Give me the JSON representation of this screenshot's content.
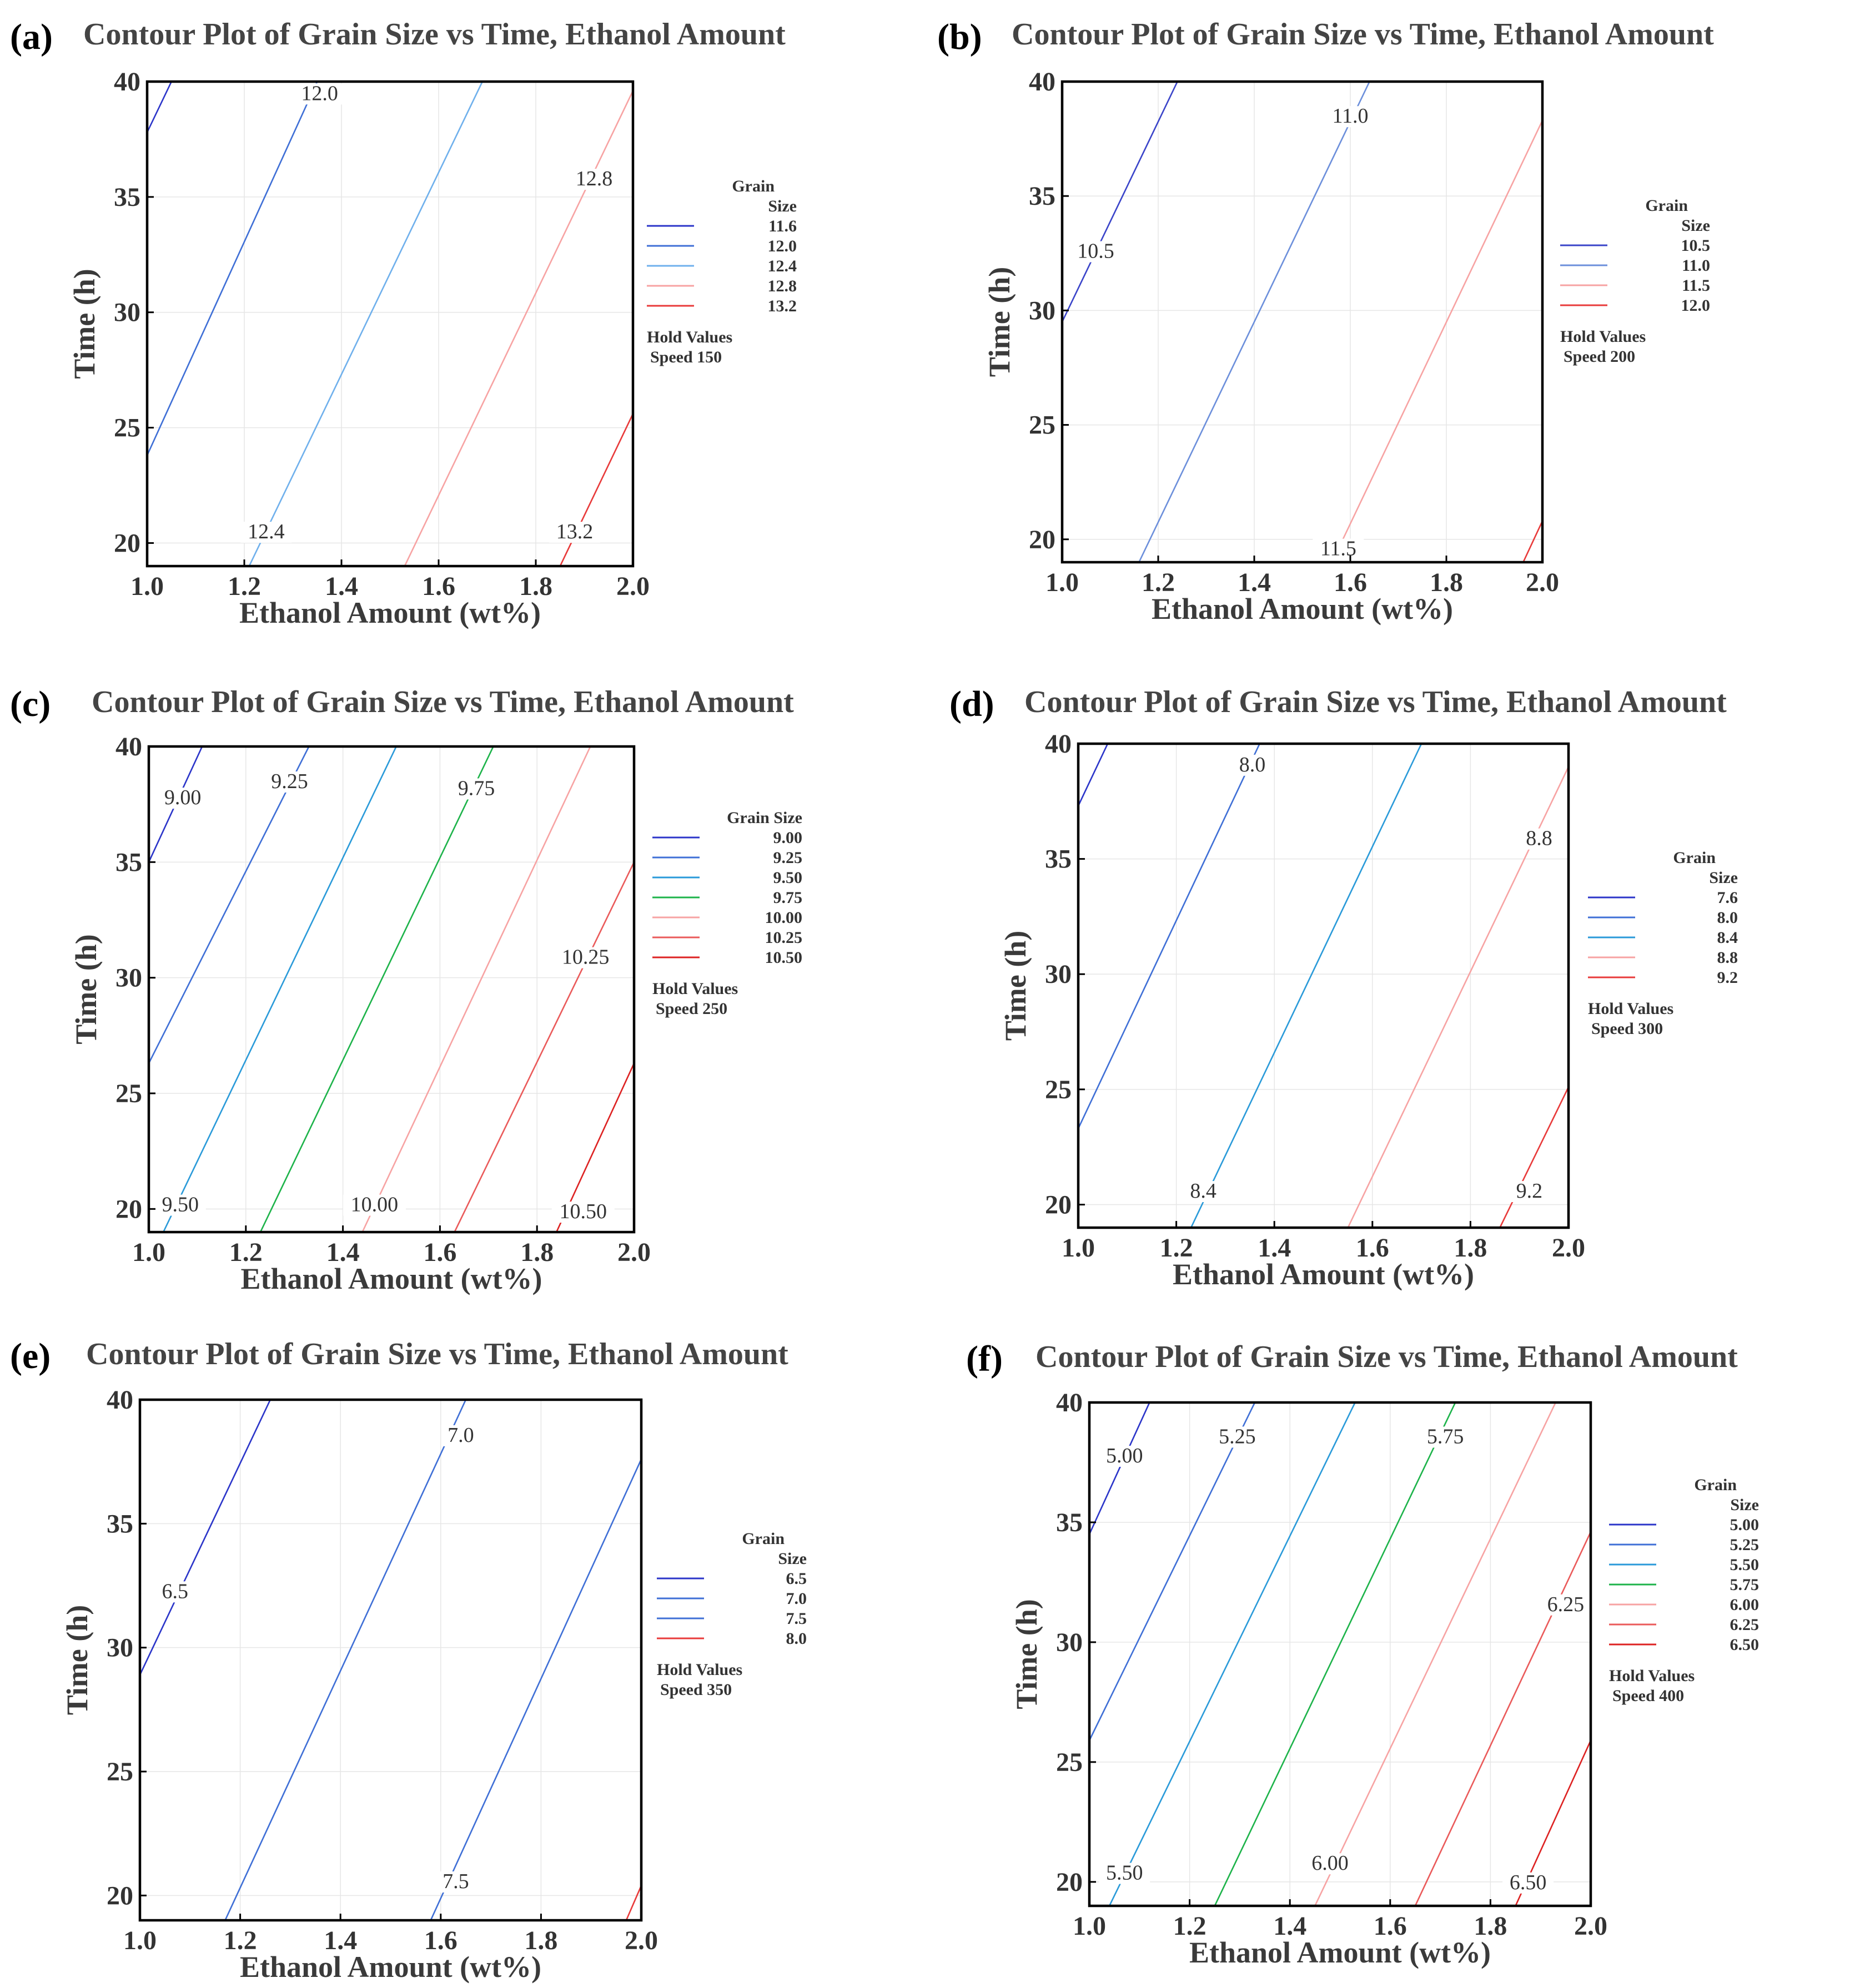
{
  "figure": {
    "panels_order": [
      "a",
      "b",
      "c",
      "d",
      "e",
      "f"
    ]
  },
  "chart_data": [
    {
      "id": "a",
      "tag": "(a)",
      "type": "line",
      "title": "Contour Plot of Grain Size vs Time, Ethanol Amount",
      "xlabel": "Ethanol Amount (wt%)",
      "ylabel": "Time (h)",
      "xlim": [
        1.0,
        2.0
      ],
      "ylim": [
        19,
        40
      ],
      "xticks": [
        "1.0",
        "1.2",
        "1.4",
        "1.6",
        "1.8",
        "2.0"
      ],
      "xtick_values": [
        1.0,
        1.2,
        1.4,
        1.6,
        1.8,
        2.0
      ],
      "yticks": [
        "20",
        "25",
        "30",
        "35",
        "40"
      ],
      "ytick_values": [
        20,
        25,
        30,
        35,
        40
      ],
      "legend_title": [
        "Grain",
        "Size"
      ],
      "hold_title": "Hold Values",
      "hold_text": "Speed   150",
      "series": [
        {
          "name": "11.6",
          "color": "#2b35c9",
          "x": [
            1.0,
            1.05
          ],
          "y": [
            37.8,
            40
          ]
        },
        {
          "name": "12.0",
          "color": "#3f6fd6",
          "x": [
            1.0,
            1.35
          ],
          "y": [
            23.8,
            40
          ]
        },
        {
          "name": "12.4",
          "color": "#6fb0ec",
          "x": [
            1.21,
            1.69
          ],
          "y": [
            19,
            40
          ]
        },
        {
          "name": "12.8",
          "color": "#f7a3a3",
          "x": [
            1.53,
            2.0
          ],
          "y": [
            19,
            39.6
          ]
        },
        {
          "name": "13.2",
          "color": "#e83a3a",
          "x": [
            1.85,
            2.0
          ],
          "y": [
            19,
            25.6
          ]
        }
      ],
      "contour_labels": [
        {
          "text": "12.0",
          "x": 1.355,
          "y": 39.2
        },
        {
          "text": "12.8",
          "x": 1.92,
          "y": 35.5
        },
        {
          "text": "12.4",
          "x": 1.245,
          "y": 20.2
        },
        {
          "text": "13.2",
          "x": 1.88,
          "y": 20.2
        }
      ]
    },
    {
      "id": "b",
      "tag": "(b)",
      "type": "line",
      "title": "Contour Plot of Grain Size vs Time, Ethanol Amount",
      "xlabel": "Ethanol Amount (wt%)",
      "ylabel": "Time (h)",
      "xlim": [
        1.0,
        2.0
      ],
      "ylim": [
        19,
        40
      ],
      "xticks": [
        "1.0",
        "1.2",
        "1.4",
        "1.6",
        "1.8",
        "2.0"
      ],
      "xtick_values": [
        1.0,
        1.2,
        1.4,
        1.6,
        1.8,
        2.0
      ],
      "yticks": [
        "20",
        "25",
        "30",
        "35",
        "40"
      ],
      "ytick_values": [
        20,
        25,
        30,
        35,
        40
      ],
      "legend_title": [
        "Grain",
        "Size"
      ],
      "hold_title": "Hold Values",
      "hold_text": "Speed   200",
      "series": [
        {
          "name": "10.5",
          "color": "#3a44c9",
          "x": [
            1.0,
            1.24
          ],
          "y": [
            29.5,
            40
          ]
        },
        {
          "name": "11.0",
          "color": "#6c8fdb",
          "x": [
            1.16,
            1.64
          ],
          "y": [
            19,
            40
          ]
        },
        {
          "name": "11.5",
          "color": "#f7a3a3",
          "x": [
            1.58,
            2.0
          ],
          "y": [
            19.8,
            38.3
          ]
        },
        {
          "name": "12.0",
          "color": "#e83a3a",
          "x": [
            1.96,
            2.0
          ],
          "y": [
            19,
            20.8
          ]
        }
      ],
      "contour_labels": [
        {
          "text": "11.0",
          "x": 1.6,
          "y": 38.2
        },
        {
          "text": "10.5",
          "x": 1.07,
          "y": 32.3
        },
        {
          "text": "11.5",
          "x": 1.575,
          "y": 19.3
        }
      ]
    },
    {
      "id": "c",
      "tag": "(c)",
      "type": "line",
      "title": "Contour Plot of Grain Size vs Time, Ethanol Amount",
      "xlabel": "Ethanol Amount (wt%)",
      "ylabel": "Time (h)",
      "xlim": [
        1.0,
        2.0
      ],
      "ylim": [
        19,
        40
      ],
      "xticks": [
        "1.0",
        "1.2",
        "1.4",
        "1.6",
        "1.8",
        "2.0"
      ],
      "xtick_values": [
        1.0,
        1.2,
        1.4,
        1.6,
        1.8,
        2.0
      ],
      "yticks": [
        "20",
        "25",
        "30",
        "35",
        "40"
      ],
      "ytick_values": [
        20,
        25,
        30,
        35,
        40
      ],
      "legend_title": [
        "Grain Size"
      ],
      "hold_title": "Hold Values",
      "hold_text": "Speed   250",
      "series": [
        {
          "name": "9.00",
          "color": "#2b35c9",
          "x": [
            1.0,
            1.11
          ],
          "y": [
            35.0,
            40
          ]
        },
        {
          "name": "9.25",
          "color": "#3f6fd6",
          "x": [
            1.0,
            1.33
          ],
          "y": [
            26.3,
            40
          ]
        },
        {
          "name": "9.50",
          "color": "#2a9ad9",
          "x": [
            1.03,
            1.51
          ],
          "y": [
            19,
            40
          ]
        },
        {
          "name": "9.75",
          "color": "#1db34a",
          "x": [
            1.23,
            1.71
          ],
          "y": [
            19,
            40
          ]
        },
        {
          "name": "10.00",
          "color": "#f7a3a3",
          "x": [
            1.44,
            1.91
          ],
          "y": [
            19,
            40
          ]
        },
        {
          "name": "10.25",
          "color": "#ea5a5a",
          "x": [
            1.63,
            2.0
          ],
          "y": [
            19,
            35.0
          ]
        },
        {
          "name": "10.50",
          "color": "#dd2222",
          "x": [
            1.84,
            2.0
          ],
          "y": [
            19,
            26.3
          ]
        }
      ],
      "contour_labels": [
        {
          "text": "9.00",
          "x": 1.07,
          "y": 37.5
        },
        {
          "text": "9.25",
          "x": 1.29,
          "y": 38.2
        },
        {
          "text": "9.75",
          "x": 1.675,
          "y": 37.9
        },
        {
          "text": "10.25",
          "x": 1.9,
          "y": 30.6
        },
        {
          "text": "9.50",
          "x": 1.065,
          "y": 19.9
        },
        {
          "text": "10.00",
          "x": 1.465,
          "y": 19.9
        },
        {
          "text": "10.50",
          "x": 1.895,
          "y": 19.6
        }
      ]
    },
    {
      "id": "d",
      "tag": "(d)",
      "type": "line",
      "title": "Contour Plot of Grain Size vs Time, Ethanol Amount",
      "xlabel": "Ethanol Amount (wt%)",
      "ylabel": "Time (h)",
      "xlim": [
        1.0,
        2.0
      ],
      "ylim": [
        19,
        40
      ],
      "xticks": [
        "1.0",
        "1.2",
        "1.4",
        "1.6",
        "1.8",
        "2.0"
      ],
      "xtick_values": [
        1.0,
        1.2,
        1.4,
        1.6,
        1.8,
        2.0
      ],
      "yticks": [
        "20",
        "25",
        "30",
        "35",
        "40"
      ],
      "ytick_values": [
        20,
        25,
        30,
        35,
        40
      ],
      "legend_title": [
        "Grain",
        "Size"
      ],
      "hold_title": "Hold Values",
      "hold_text": "Speed   300",
      "series": [
        {
          "name": "7.6",
          "color": "#2b35c9",
          "x": [
            1.0,
            1.06
          ],
          "y": [
            37.3,
            40
          ]
        },
        {
          "name": "8.0",
          "color": "#3f6fd6",
          "x": [
            1.0,
            1.37
          ],
          "y": [
            23.3,
            40
          ]
        },
        {
          "name": "8.4",
          "color": "#2a9ad9",
          "x": [
            1.23,
            1.7
          ],
          "y": [
            19,
            40
          ]
        },
        {
          "name": "8.8",
          "color": "#f7a3a3",
          "x": [
            1.55,
            2.0
          ],
          "y": [
            19,
            39.0
          ]
        },
        {
          "name": "9.2",
          "color": "#e83a3a",
          "x": [
            1.86,
            2.0
          ],
          "y": [
            19,
            25.1
          ]
        }
      ],
      "contour_labels": [
        {
          "text": "8.0",
          "x": 1.355,
          "y": 38.8
        },
        {
          "text": "8.8",
          "x": 1.94,
          "y": 35.6
        },
        {
          "text": "8.4",
          "x": 1.255,
          "y": 20.3
        },
        {
          "text": "9.2",
          "x": 1.92,
          "y": 20.3
        }
      ]
    },
    {
      "id": "e",
      "tag": "(e)",
      "type": "line",
      "title": "Contour Plot of Grain Size vs Time, Ethanol Amount",
      "xlabel": "Ethanol Amount (wt%)",
      "ylabel": "Time (h)",
      "xlim": [
        1.0,
        2.0
      ],
      "ylim": [
        19,
        40
      ],
      "xticks": [
        "1.0",
        "1.2",
        "1.4",
        "1.6",
        "1.8",
        "2.0"
      ],
      "xtick_values": [
        1.0,
        1.2,
        1.4,
        1.6,
        1.8,
        2.0
      ],
      "yticks": [
        "20",
        "25",
        "30",
        "35",
        "40"
      ],
      "ytick_values": [
        20,
        25,
        30,
        35,
        40
      ],
      "legend_title": [
        "Grain",
        "Size"
      ],
      "hold_title": "Hold Values",
      "hold_text": "Speed   350",
      "series": [
        {
          "name": "6.5",
          "color": "#2b35c9",
          "x": [
            1.0,
            1.26
          ],
          "y": [
            28.9,
            40
          ]
        },
        {
          "name": "7.0",
          "color": "#3f6fd6",
          "x": [
            1.17,
            1.65
          ],
          "y": [
            19,
            40
          ]
        },
        {
          "name": "7.5",
          "color": "#3f6fd6",
          "x": [
            1.58,
            2.0
          ],
          "y": [
            19,
            37.6
          ]
        },
        {
          "name": "8.0",
          "color": "#e83a3a",
          "x": [
            1.97,
            2.0
          ],
          "y": [
            19,
            20.4
          ]
        }
      ],
      "contour_labels": [
        {
          "text": "7.0",
          "x": 1.64,
          "y": 38.3
        },
        {
          "text": "6.5",
          "x": 1.07,
          "y": 32.0
        },
        {
          "text": "7.5",
          "x": 1.63,
          "y": 20.3
        }
      ]
    },
    {
      "id": "f",
      "tag": "(f)",
      "type": "line",
      "title": "Contour Plot of Grain Size vs Time, Ethanol Amount",
      "xlabel": "Ethanol Amount (wt%)",
      "ylabel": "Time (h)",
      "xlim": [
        1.0,
        2.0
      ],
      "ylim": [
        19,
        40
      ],
      "xticks": [
        "1.0",
        "1.2",
        "1.4",
        "1.6",
        "1.8",
        "2.0"
      ],
      "xtick_values": [
        1.0,
        1.2,
        1.4,
        1.6,
        1.8,
        2.0
      ],
      "yticks": [
        "20",
        "25",
        "30",
        "35",
        "40"
      ],
      "ytick_values": [
        20,
        25,
        30,
        35,
        40
      ],
      "legend_title": [
        "Grain",
        "Size"
      ],
      "hold_title": "Hold Values",
      "hold_text": "Speed   400",
      "series": [
        {
          "name": "5.00",
          "color": "#2b35c9",
          "x": [
            1.0,
            1.12
          ],
          "y": [
            34.5,
            40
          ]
        },
        {
          "name": "5.25",
          "color": "#3f6fd6",
          "x": [
            1.0,
            1.33
          ],
          "y": [
            25.9,
            40
          ]
        },
        {
          "name": "5.50",
          "color": "#2a9ad9",
          "x": [
            1.04,
            1.53
          ],
          "y": [
            19,
            40
          ]
        },
        {
          "name": "5.75",
          "color": "#1db34a",
          "x": [
            1.25,
            1.73
          ],
          "y": [
            19,
            40
          ]
        },
        {
          "name": "6.00",
          "color": "#f7a3a3",
          "x": [
            1.45,
            1.93
          ],
          "y": [
            19,
            40
          ]
        },
        {
          "name": "6.25",
          "color": "#ea5a5a",
          "x": [
            1.65,
            2.0
          ],
          "y": [
            19,
            34.6
          ]
        },
        {
          "name": "6.50",
          "color": "#dd2222",
          "x": [
            1.85,
            2.0
          ],
          "y": [
            19,
            25.9
          ]
        }
      ],
      "contour_labels": [
        {
          "text": "5.00",
          "x": 1.07,
          "y": 37.5
        },
        {
          "text": "5.25",
          "x": 1.295,
          "y": 38.3
        },
        {
          "text": "5.75",
          "x": 1.71,
          "y": 38.3
        },
        {
          "text": "6.25",
          "x": 1.95,
          "y": 31.3
        },
        {
          "text": "5.50",
          "x": 1.07,
          "y": 20.1
        },
        {
          "text": "6.00",
          "x": 1.48,
          "y": 20.5
        },
        {
          "text": "6.50",
          "x": 1.875,
          "y": 19.7
        }
      ]
    }
  ]
}
